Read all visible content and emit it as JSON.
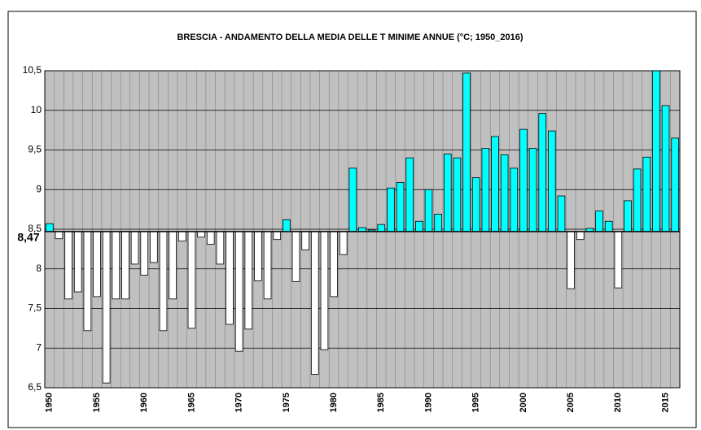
{
  "chart_data": {
    "type": "bar",
    "title": "BRESCIA - ANDAMENTO DELLA MEDIA DELLE T MINIME ANNUE (°C; 1950_2016)",
    "categories": [
      "1950",
      null,
      null,
      null,
      null,
      "1955",
      null,
      null,
      null,
      null,
      "1960",
      null,
      null,
      null,
      null,
      "1965",
      null,
      null,
      null,
      null,
      "1970",
      null,
      null,
      null,
      null,
      "1975",
      null,
      null,
      null,
      null,
      "1980",
      null,
      null,
      null,
      null,
      "1985",
      null,
      null,
      null,
      null,
      "1990",
      null,
      null,
      null,
      null,
      "1995",
      null,
      null,
      null,
      null,
      "2000",
      null,
      null,
      null,
      null,
      "2005",
      null,
      null,
      null,
      null,
      "2010",
      null,
      null,
      null,
      null,
      "2015",
      null
    ],
    "values": [
      8.57,
      8.38,
      7.62,
      7.71,
      7.22,
      7.65,
      6.56,
      7.62,
      7.62,
      8.06,
      7.92,
      8.08,
      7.22,
      7.62,
      8.35,
      7.25,
      8.4,
      8.31,
      8.06,
      7.3,
      6.96,
      7.24,
      7.85,
      7.62,
      8.37,
      8.62,
      7.84,
      8.24,
      6.67,
      6.98,
      7.65,
      8.18,
      9.27,
      8.52,
      8.49,
      8.56,
      9.02,
      9.09,
      9.4,
      8.6,
      9.0,
      8.69,
      9.45,
      9.4,
      10.47,
      9.15,
      9.52,
      9.67,
      9.44,
      9.27,
      9.76,
      9.52,
      9.96,
      9.74,
      8.92,
      7.75,
      8.37,
      8.51,
      8.73,
      8.6,
      7.76,
      8.86,
      9.26,
      9.41,
      10.53,
      10.06,
      9.65
    ],
    "baseline": 8.47,
    "baseline_label": "8,47",
    "color_above": "#00ffff",
    "color_below": "#ffffff",
    "plot_background": "#c0c0c0",
    "ylim": [
      6.5,
      10.5
    ],
    "yticks": [
      {
        "value": 6.5,
        "label": "6,5"
      },
      7,
      {
        "value": 7.5,
        "label": "7,5"
      },
      8,
      {
        "value": 8.5,
        "label": "8,5"
      },
      9,
      {
        "value": 9.5,
        "label": "9,5"
      },
      10,
      {
        "value": 10.5,
        "label": "10,5"
      }
    ],
    "grid": true
  }
}
